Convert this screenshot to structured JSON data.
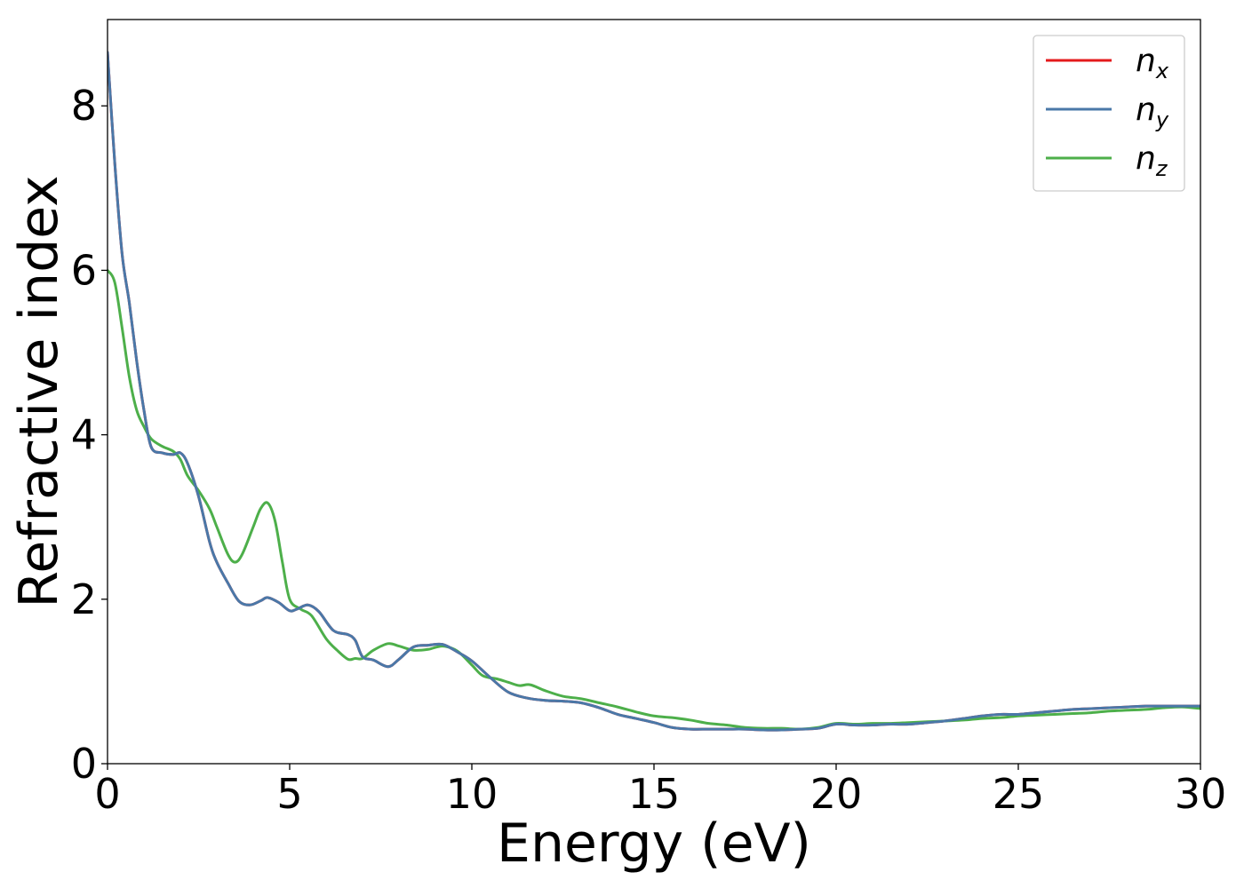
{
  "chart_data": {
    "type": "line",
    "xlabel": "Energy (eV)",
    "ylabel": "Refractive index",
    "xlim": [
      0,
      30
    ],
    "ylim": [
      0,
      9.05
    ],
    "xticks": [
      0,
      5,
      10,
      15,
      20,
      25,
      30
    ],
    "yticks": [
      0,
      2,
      4,
      6,
      8
    ],
    "grid": false,
    "legend_position": "top-right",
    "series": [
      {
        "name": "n",
        "subscript": "x",
        "color": "#e41a1c",
        "x": [
          0.0,
          0.2,
          0.4,
          0.6,
          0.8,
          1.0,
          1.2,
          1.5,
          1.8,
          2.0,
          2.2,
          2.5,
          2.8,
          3.0,
          3.3,
          3.6,
          3.9,
          4.2,
          4.4,
          4.7,
          5.0,
          5.2,
          5.5,
          5.8,
          6.2,
          6.6,
          6.8,
          7.0,
          7.3,
          7.7,
          8.0,
          8.4,
          8.8,
          9.2,
          9.6,
          10.0,
          10.5,
          11.0,
          11.5,
          12.0,
          12.5,
          13.0,
          13.5,
          14.0,
          14.5,
          15.0,
          15.5,
          16.0,
          16.5,
          17.0,
          17.5,
          18.0,
          18.5,
          19.0,
          19.5,
          20.0,
          20.5,
          21.0,
          21.5,
          22.0,
          22.5,
          23.0,
          23.5,
          24.0,
          24.5,
          25.0,
          25.5,
          26.0,
          26.5,
          27.0,
          27.5,
          28.0,
          28.5,
          29.0,
          29.5,
          30.0
        ],
        "y": [
          8.65,
          7.3,
          6.2,
          5.6,
          4.9,
          4.3,
          3.85,
          3.78,
          3.76,
          3.78,
          3.65,
          3.25,
          2.7,
          2.45,
          2.2,
          1.98,
          1.93,
          1.98,
          2.02,
          1.96,
          1.86,
          1.88,
          1.93,
          1.85,
          1.62,
          1.57,
          1.5,
          1.3,
          1.26,
          1.18,
          1.27,
          1.42,
          1.44,
          1.45,
          1.36,
          1.25,
          1.05,
          0.87,
          0.8,
          0.77,
          0.76,
          0.74,
          0.68,
          0.6,
          0.55,
          0.5,
          0.44,
          0.42,
          0.42,
          0.42,
          0.42,
          0.41,
          0.41,
          0.42,
          0.43,
          0.48,
          0.47,
          0.47,
          0.48,
          0.48,
          0.5,
          0.52,
          0.55,
          0.58,
          0.6,
          0.6,
          0.62,
          0.64,
          0.66,
          0.67,
          0.68,
          0.69,
          0.7,
          0.7,
          0.7,
          0.7
        ]
      },
      {
        "name": "n",
        "subscript": "y",
        "color": "#4a78a8",
        "x": [
          0.0,
          0.2,
          0.4,
          0.6,
          0.8,
          1.0,
          1.2,
          1.5,
          1.8,
          2.0,
          2.2,
          2.5,
          2.8,
          3.0,
          3.3,
          3.6,
          3.9,
          4.2,
          4.4,
          4.7,
          5.0,
          5.2,
          5.5,
          5.8,
          6.2,
          6.6,
          6.8,
          7.0,
          7.3,
          7.7,
          8.0,
          8.4,
          8.8,
          9.2,
          9.6,
          10.0,
          10.5,
          11.0,
          11.5,
          12.0,
          12.5,
          13.0,
          13.5,
          14.0,
          14.5,
          15.0,
          15.5,
          16.0,
          16.5,
          17.0,
          17.5,
          18.0,
          18.5,
          19.0,
          19.5,
          20.0,
          20.5,
          21.0,
          21.5,
          22.0,
          22.5,
          23.0,
          23.5,
          24.0,
          24.5,
          25.0,
          25.5,
          26.0,
          26.5,
          27.0,
          27.5,
          28.0,
          28.5,
          29.0,
          29.5,
          30.0
        ],
        "y": [
          8.65,
          7.3,
          6.2,
          5.6,
          4.9,
          4.3,
          3.85,
          3.78,
          3.76,
          3.78,
          3.65,
          3.25,
          2.7,
          2.45,
          2.2,
          1.98,
          1.93,
          1.98,
          2.02,
          1.96,
          1.86,
          1.88,
          1.93,
          1.85,
          1.62,
          1.57,
          1.5,
          1.3,
          1.26,
          1.18,
          1.27,
          1.42,
          1.44,
          1.45,
          1.36,
          1.25,
          1.05,
          0.87,
          0.8,
          0.77,
          0.76,
          0.74,
          0.68,
          0.6,
          0.55,
          0.5,
          0.44,
          0.42,
          0.42,
          0.42,
          0.42,
          0.41,
          0.41,
          0.42,
          0.43,
          0.48,
          0.47,
          0.47,
          0.48,
          0.48,
          0.5,
          0.52,
          0.55,
          0.58,
          0.6,
          0.6,
          0.62,
          0.64,
          0.66,
          0.67,
          0.68,
          0.69,
          0.7,
          0.7,
          0.7,
          0.7
        ]
      },
      {
        "name": "n",
        "subscript": "z",
        "color": "#4daf4a",
        "x": [
          0.0,
          0.2,
          0.4,
          0.6,
          0.8,
          1.0,
          1.2,
          1.5,
          1.8,
          2.0,
          2.2,
          2.5,
          2.8,
          3.0,
          3.3,
          3.5,
          3.7,
          4.0,
          4.2,
          4.4,
          4.6,
          4.8,
          5.0,
          5.3,
          5.6,
          6.0,
          6.3,
          6.6,
          6.8,
          7.0,
          7.3,
          7.7,
          8.0,
          8.4,
          8.8,
          9.2,
          9.6,
          10.0,
          10.3,
          10.7,
          11.0,
          11.3,
          11.6,
          12.0,
          12.5,
          13.0,
          13.5,
          14.0,
          14.5,
          15.0,
          15.5,
          16.0,
          16.5,
          17.0,
          17.5,
          18.0,
          18.5,
          19.0,
          19.5,
          20.0,
          20.5,
          21.0,
          21.5,
          22.0,
          22.5,
          23.0,
          23.5,
          24.0,
          24.5,
          25.0,
          25.5,
          26.0,
          26.5,
          27.0,
          27.5,
          28.0,
          28.5,
          29.0,
          29.5,
          30.0
        ],
        "y": [
          6.0,
          5.85,
          5.3,
          4.7,
          4.3,
          4.1,
          3.95,
          3.86,
          3.8,
          3.7,
          3.5,
          3.32,
          3.1,
          2.88,
          2.55,
          2.45,
          2.55,
          2.88,
          3.1,
          3.17,
          2.95,
          2.45,
          2.0,
          1.88,
          1.8,
          1.52,
          1.38,
          1.27,
          1.28,
          1.28,
          1.38,
          1.46,
          1.43,
          1.38,
          1.39,
          1.43,
          1.37,
          1.2,
          1.07,
          1.03,
          0.99,
          0.95,
          0.96,
          0.89,
          0.82,
          0.79,
          0.74,
          0.69,
          0.63,
          0.58,
          0.56,
          0.53,
          0.49,
          0.47,
          0.44,
          0.43,
          0.43,
          0.42,
          0.44,
          0.49,
          0.48,
          0.49,
          0.49,
          0.5,
          0.51,
          0.52,
          0.53,
          0.55,
          0.56,
          0.58,
          0.59,
          0.6,
          0.61,
          0.62,
          0.64,
          0.65,
          0.66,
          0.68,
          0.69,
          0.67
        ]
      }
    ]
  }
}
